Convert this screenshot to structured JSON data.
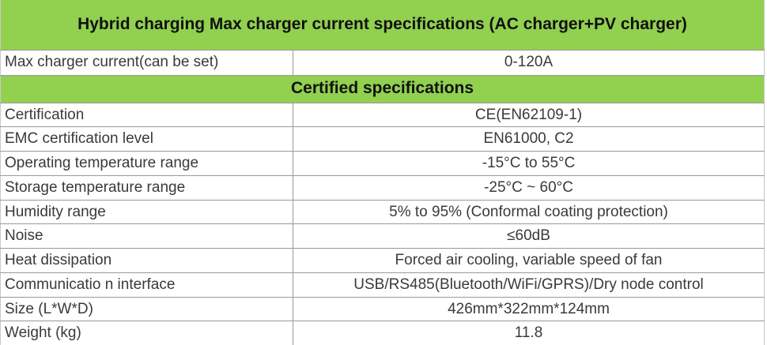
{
  "colors": {
    "band_green": "#92D050",
    "border_gray": "#999999",
    "text_dark": "#3a3a3a",
    "heading_black": "#111111"
  },
  "table": {
    "title": "Hybrid charging Max charger current specifications (AC charger+PV charger)",
    "top_row": {
      "label": "Max charger current(can be set)",
      "value": "0-120A"
    },
    "section_title": "Certified specifications",
    "spec_rows": [
      {
        "label": "Certification",
        "value": "CE(EN62109-1)"
      },
      {
        "label": "EMC certification level",
        "value": "EN61000, C2"
      },
      {
        "label": "Operating temperature range",
        "value": "-15°C to 55°C"
      },
      {
        "label": "Storage temperature range",
        "value": "-25°C ~ 60°C"
      },
      {
        "label": "Humidity range",
        "value": "5% to 95% (Conformal coating protection)"
      },
      {
        "label": "Noise",
        "value": "≤60dB"
      },
      {
        "label": "Heat dissipation",
        "value": "Forced air cooling, variable speed of fan"
      },
      {
        "label": "Communicatio n interface",
        "value": "USB/RS485(Bluetooth/WiFi/GPRS)/Dry node control"
      },
      {
        "label": "Size (L*W*D)",
        "value": "426mm*322mm*124mm"
      },
      {
        "label": "Weight (kg)",
        "value": "11.8"
      }
    ]
  }
}
